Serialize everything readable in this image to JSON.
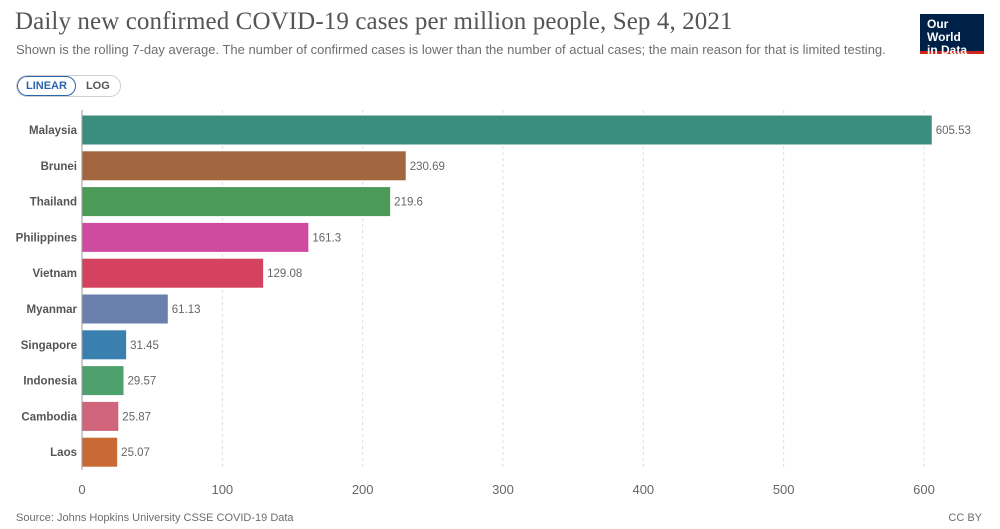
{
  "title": "Daily new confirmed COVID-19 cases per million people, Sep 4, 2021",
  "subtitle": "Shown is the rolling 7-day average. The number of confirmed cases is lower than the number of actual cases; the main reason for that is limited testing.",
  "logo": {
    "line1": "Our World",
    "line2": "in Data"
  },
  "scale_toggle": {
    "linear_label": "LINEAR",
    "log_label": "LOG",
    "selected": "LINEAR"
  },
  "footer": {
    "source": "Source: Johns Hopkins University CSSE COVID-19 Data",
    "license": "CC BY"
  },
  "chart_data": {
    "type": "bar",
    "orientation": "horizontal",
    "categories": [
      "Malaysia",
      "Brunei",
      "Thailand",
      "Philippines",
      "Vietnam",
      "Myanmar",
      "Singapore",
      "Indonesia",
      "Cambodia",
      "Laos"
    ],
    "values": [
      605.53,
      230.69,
      219.6,
      161.3,
      129.08,
      61.13,
      31.45,
      29.57,
      25.87,
      25.07
    ],
    "value_labels": [
      "605.53",
      "230.69",
      "219.6",
      "161.3",
      "129.08",
      "61.13",
      "31.45",
      "29.57",
      "25.87",
      "25.07"
    ],
    "colors": [
      "#3b8e7e",
      "#a2673f",
      "#4c9a59",
      "#cf4b9f",
      "#d4425f",
      "#6a7fab",
      "#3a80af",
      "#4ea06c",
      "#d0647a",
      "#c96a35"
    ],
    "xticks": [
      0,
      100,
      200,
      300,
      400,
      500,
      600
    ],
    "xlim": [
      0,
      610
    ],
    "grid": true,
    "grid_color": "#dddddd",
    "label_color": "#555555",
    "value_label_color": "#666666"
  }
}
